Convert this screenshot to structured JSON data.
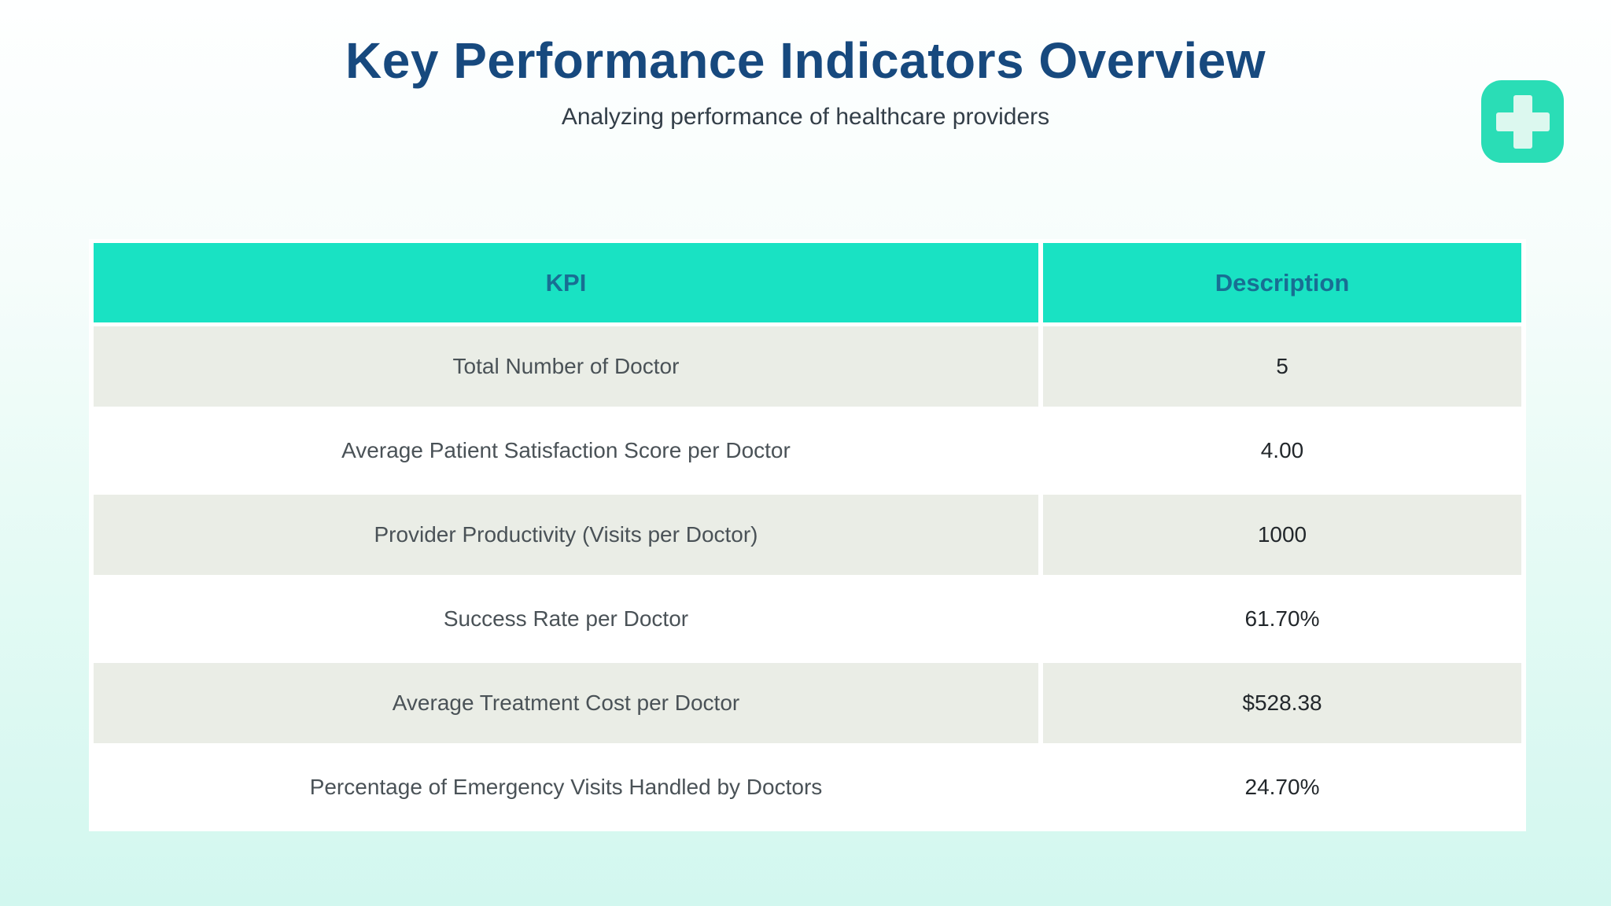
{
  "page": {
    "title": "Key Performance Indicators Overview",
    "subtitle": "Analyzing performance of healthcare providers"
  },
  "icons": {
    "medical_plus": "medical-plus-icon"
  },
  "colors": {
    "accent_teal": "#19E2C3",
    "icon_teal": "#2ADDB6",
    "icon_plus": "#DCF8EF",
    "title_navy": "#17497E",
    "header_text": "#186E93",
    "row_alt": "#EAEDE6",
    "row_white": "#FFFFFF",
    "kpi_text": "#4A5257",
    "value_text": "#22272B",
    "subtitle_text": "#333E48",
    "bg_top": "#FEFFFF",
    "bg_bottom": "#D2F7EF"
  },
  "table": {
    "columns": [
      "KPI",
      "Description"
    ],
    "rows": [
      {
        "kpi": "Total Number of Doctor",
        "value": "5"
      },
      {
        "kpi": "Average Patient Satisfaction Score per Doctor",
        "value": "4.00"
      },
      {
        "kpi": "Provider Productivity (Visits per Doctor)",
        "value": "1000"
      },
      {
        "kpi": "Success Rate per Doctor",
        "value": "61.70%"
      },
      {
        "kpi": "Average Treatment Cost per Doctor",
        "value": "$528.38"
      },
      {
        "kpi": "Percentage of Emergency Visits Handled by Doctors",
        "value": "24.70%"
      }
    ]
  }
}
